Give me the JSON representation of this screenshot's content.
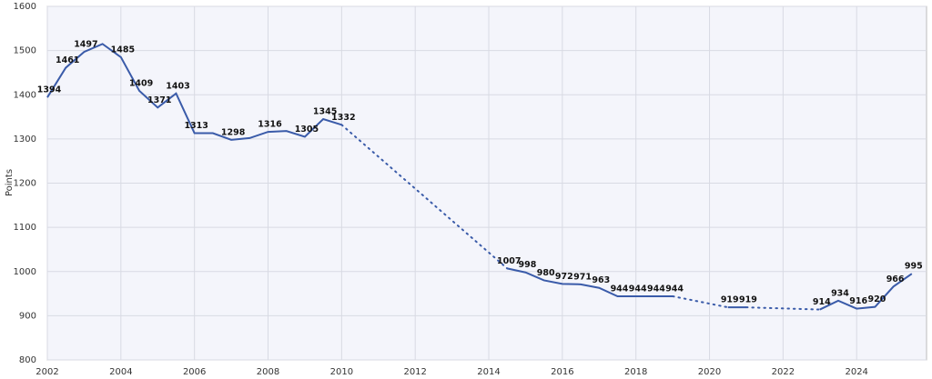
{
  "chart_data": {
    "type": "line",
    "y_label": "Points",
    "x": [
      2002,
      2002.5,
      2003,
      2003.5,
      2004,
      2004.5,
      2005,
      2005.5,
      2006,
      2006.5,
      2007,
      2007.5,
      2008,
      2008.5,
      2009,
      2009.5,
      2010,
      2014.5,
      2015,
      2015.5,
      2016,
      2016.5,
      2017,
      2017.5,
      2018,
      2018.5,
      2019,
      2020.5,
      2021,
      2023,
      2023.5,
      2024,
      2024.5,
      2025,
      2025.5
    ],
    "series": [
      {
        "color": "#3a5ba9",
        "values": [
          1394,
          1461,
          1497,
          1515,
          1485,
          1409,
          1371,
          1403,
          1313,
          1313,
          1298,
          1302,
          1316,
          1318,
          1305,
          1345,
          1332,
          1007,
          998,
          980,
          972,
          971,
          963,
          944,
          944,
          944,
          944,
          919,
          919,
          914,
          934,
          916,
          920,
          966,
          995
        ],
        "value_labels": [
          "1394",
          "1461",
          "1497",
          null,
          "1485",
          "1409",
          "1371",
          "1403",
          "1313",
          null,
          "1298",
          null,
          "1316",
          null,
          "1305",
          "1345",
          "1332",
          "1007",
          "998",
          "980",
          "972",
          "971",
          "963",
          "944",
          "944",
          "944",
          "944",
          "919",
          "919",
          "914",
          "934",
          "916",
          "920",
          "966",
          "995"
        ]
      }
    ],
    "xlim": [
      2002,
      2025.9
    ],
    "xticks": [
      2002,
      2004,
      2006,
      2008,
      2010,
      2012,
      2014,
      2016,
      2018,
      2020,
      2022,
      2024
    ],
    "ylim": [
      800,
      1600
    ],
    "yticks": [
      800,
      900,
      1000,
      1100,
      1200,
      1300,
      1400,
      1500,
      1600
    ],
    "grid": true
  }
}
